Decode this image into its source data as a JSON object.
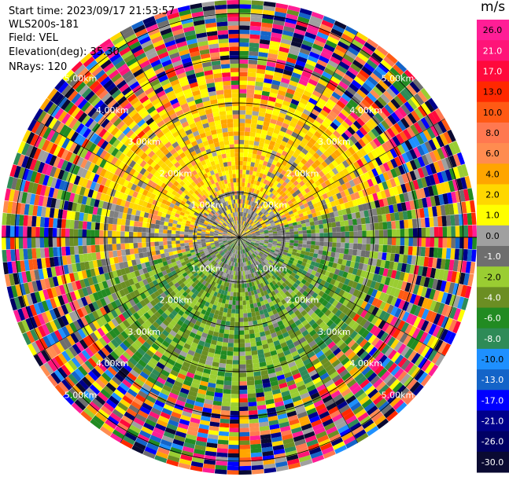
{
  "header": {
    "start_time": "Start time: 2023/09/17 21:53:57",
    "instrument": "WLS200s-181",
    "field": "Field: VEL",
    "elevation": "Elevation(deg): 35.30",
    "nrays": "NRays: 120"
  },
  "chart_data": {
    "type": "ppi",
    "field": "VEL",
    "units": "m/s",
    "range_ring_labels": [
      "1.00km",
      "2.00km",
      "3.00km",
      "4.00km",
      "5.00km"
    ],
    "range_rings_km": [
      1,
      2,
      3,
      4,
      5
    ],
    "ring_label_angles_deg": [
      45,
      135,
      225,
      315
    ],
    "colorbar": {
      "title": "m/s",
      "tick_labels": [
        "26.0",
        "21.0",
        "17.0",
        "13.0",
        "10.0",
        "8.0",
        "6.0",
        "4.0",
        "2.0",
        "1.0",
        "0.0",
        "-1.0",
        "-2.0",
        "-4.0",
        "-6.0",
        "-8.0",
        "-10.0",
        "-13.0",
        "-17.0",
        "-21.0",
        "-26.0",
        "-30.0"
      ],
      "colors": [
        "#ff1e96",
        "#ff1478",
        "#ff0a3c",
        "#ff2800",
        "#ff5a14",
        "#ff7850",
        "#ff8c50",
        "#ffa500",
        "#ffd700",
        "#ffff00",
        "#a0a0a0",
        "#6e6e6e",
        "#9acd32",
        "#6b8e23",
        "#228b22",
        "#2e8b57",
        "#1e90ff",
        "#1464c8",
        "#0000ff",
        "#00008b",
        "#000064",
        "#0a0a32"
      ]
    },
    "nrays": 120,
    "elevation_deg": 35.3,
    "annotations": [
      "Start time: 2023/09/17 21:53:57",
      "WLS200s-181",
      "Field: VEL",
      "Elevation(deg): 35.30",
      "NRays: 120"
    ]
  }
}
